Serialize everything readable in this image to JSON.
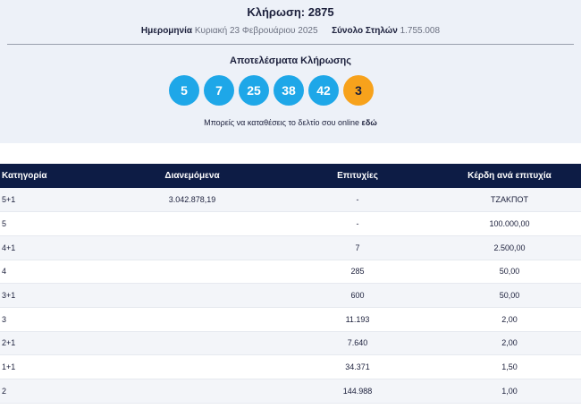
{
  "header": {
    "title": "Κλήρωση: 2875",
    "date_label": "Ημερομηνία",
    "date_value": "Κυριακή 23 Φεβρουάριου 2025",
    "columns_label": "Σύνολο Στηλών",
    "columns_value": "1.755.008"
  },
  "results": {
    "title": "Αποτελέσματα Κλήρωσης",
    "numbers": [
      "5",
      "7",
      "25",
      "38",
      "42"
    ],
    "joker": "3",
    "joker_color": "#f7a21c",
    "number_color": "#1ea7e8",
    "online_text": "Μπορείς να καταθέσεις το δελτίο σου online",
    "online_link": "εδώ"
  },
  "table": {
    "header_color": "#0d1c45",
    "columns": [
      "Κατηγορία",
      "Διανεμόμενα",
      "Επιτυχίες",
      "Κέρδη ανά επιτυχία"
    ],
    "rows": [
      [
        "5+1",
        "3.042.878,19",
        "-",
        "ΤΖΑΚΠΟΤ"
      ],
      [
        "5",
        "",
        "-",
        "100.000,00"
      ],
      [
        "4+1",
        "",
        "7",
        "2.500,00"
      ],
      [
        "4",
        "",
        "285",
        "50,00"
      ],
      [
        "3+1",
        "",
        "600",
        "50,00"
      ],
      [
        "3",
        "",
        "11.193",
        "2,00"
      ],
      [
        "2+1",
        "",
        "7.640",
        "2,00"
      ],
      [
        "1+1",
        "",
        "34.371",
        "1,50"
      ],
      [
        "2",
        "",
        "144.988",
        "1,00"
      ]
    ]
  }
}
